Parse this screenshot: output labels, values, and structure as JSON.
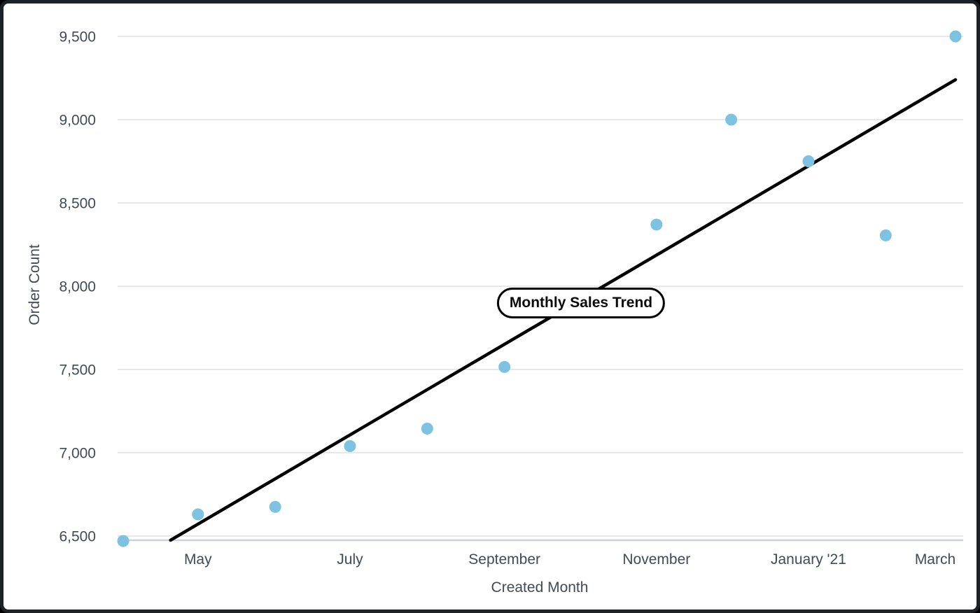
{
  "colors": {
    "point": "#7EC2E2",
    "trendline": "#000000",
    "gridline": "#E8E8E8",
    "axis_line": "#C9D1E4",
    "text": "#414B53",
    "card_border": "#1B2228",
    "background": "#FFFFFF"
  },
  "chart_data": {
    "type": "scatter",
    "title": "Monthly Sales Trend",
    "xlabel": "Created Month",
    "ylabel": "Order Count",
    "grid": "horizontal",
    "legend": "none",
    "x_axis": {
      "type": "time",
      "range_start": "2020-04-01",
      "range_end": "2021-03-01",
      "ticks": [
        {
          "date": "2020-05-01",
          "label": "May"
        },
        {
          "date": "2020-07-01",
          "label": "July"
        },
        {
          "date": "2020-09-01",
          "label": "September"
        },
        {
          "date": "2020-11-01",
          "label": "November"
        },
        {
          "date": "2021-01-01",
          "label": "January '21"
        },
        {
          "date": "2021-03-01",
          "label": "March"
        }
      ]
    },
    "y_axis": {
      "min": 6500,
      "max": 9500,
      "tick_step": 500,
      "ticks": [
        {
          "value": 6500,
          "label": "6,500"
        },
        {
          "value": 7000,
          "label": "7,000"
        },
        {
          "value": 7500,
          "label": "7,500"
        },
        {
          "value": 8000,
          "label": "8,000"
        },
        {
          "value": 8500,
          "label": "8,500"
        },
        {
          "value": 9000,
          "label": "9,000"
        },
        {
          "value": 9500,
          "label": "9,500"
        }
      ]
    },
    "series": [
      {
        "name": "Order Count",
        "type": "scatter",
        "color": "#7EC2E2",
        "points": [
          {
            "month": "April 2020",
            "date": "2020-04-01",
            "value": 6470
          },
          {
            "month": "May 2020",
            "date": "2020-05-01",
            "value": 6630
          },
          {
            "month": "June 2020",
            "date": "2020-06-01",
            "value": 6675
          },
          {
            "month": "July 2020",
            "date": "2020-07-01",
            "value": 7040
          },
          {
            "month": "August 2020",
            "date": "2020-08-01",
            "value": 7145
          },
          {
            "month": "September 2020",
            "date": "2020-09-01",
            "value": 7515
          },
          {
            "month": "November 2020",
            "date": "2020-11-01",
            "value": 8370
          },
          {
            "month": "December 2020",
            "date": "2020-12-01",
            "value": 9000
          },
          {
            "month": "January 2021",
            "date": "2021-01-01",
            "value": 8750
          },
          {
            "month": "February 2021",
            "date": "2021-02-01",
            "value": 8305
          },
          {
            "month": "March 2021",
            "date": "2021-03-01",
            "value": 9500
          }
        ]
      }
    ],
    "trendline": {
      "type": "linear",
      "color": "#000000",
      "start": {
        "date": "2020-04-20",
        "value": 6475
      },
      "end": {
        "date": "2021-03-01",
        "value": 9240
      }
    }
  }
}
